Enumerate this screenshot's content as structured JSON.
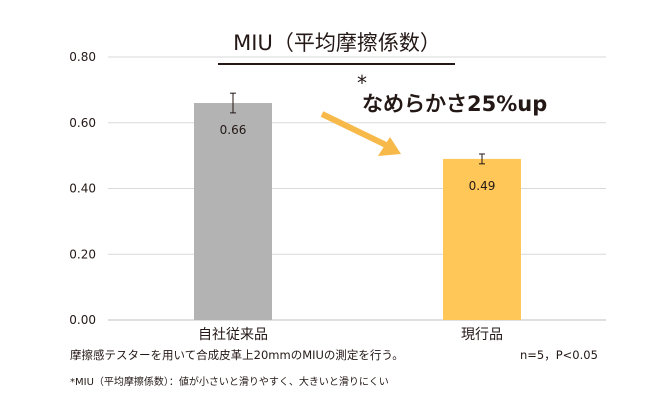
{
  "chart_data": {
    "type": "bar",
    "title": "MIU（平均摩擦係数）",
    "categories": [
      "自社従来品",
      "現行品"
    ],
    "values": [
      0.66,
      0.49
    ],
    "value_labels": [
      "0.66",
      "0.49"
    ],
    "error": [
      0.03,
      0.015
    ],
    "bar_colors": [
      "#b3b3b3",
      "#ffc658"
    ],
    "ylim": [
      0,
      0.8
    ],
    "yticks": [
      "0.00",
      "0.20",
      "0.40",
      "0.60",
      "0.80"
    ],
    "ytick_values": [
      0,
      0.2,
      0.4,
      0.6,
      0.8
    ],
    "grid": true,
    "significance_mark": "*",
    "annotation": "なめらかさ25%up",
    "arrow_color": "#f7b94a"
  },
  "notes": {
    "method": "摩擦感テスターを用いて合成皮革上20mmのMIUの測定を行う。",
    "stats": "n=5，P<0.05",
    "definition": "*MIU（平均摩擦係数）：値が小さいと滑りやすく、大きいと滑りにくい"
  }
}
